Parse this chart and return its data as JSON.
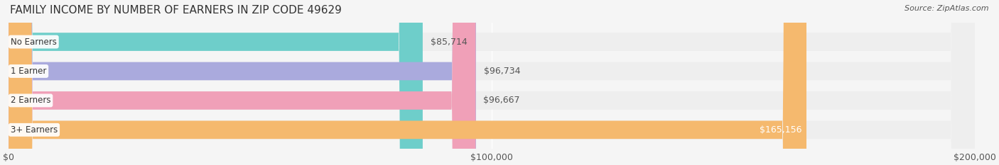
{
  "title": "FAMILY INCOME BY NUMBER OF EARNERS IN ZIP CODE 49629",
  "source": "Source: ZipAtlas.com",
  "categories": [
    "No Earners",
    "1 Earner",
    "2 Earners",
    "3+ Earners"
  ],
  "values": [
    85714,
    96734,
    96667,
    165156
  ],
  "bar_colors": [
    "#6ececa",
    "#aaaadd",
    "#f0a0b8",
    "#f5b96e"
  ],
  "bar_bg_color": "#eeeeee",
  "label_colors": [
    "#333333",
    "#333333",
    "#333333",
    "#ffffff"
  ],
  "xlim": [
    0,
    200000
  ],
  "xticks": [
    0,
    100000,
    200000
  ],
  "xtick_labels": [
    "$0",
    "$100,000",
    "$200,000"
  ],
  "title_fontsize": 11,
  "source_fontsize": 8,
  "tick_fontsize": 9,
  "bar_label_fontsize": 9,
  "category_fontsize": 8.5,
  "background_color": "#f5f5f5",
  "bar_bg_alpha": 1.0
}
